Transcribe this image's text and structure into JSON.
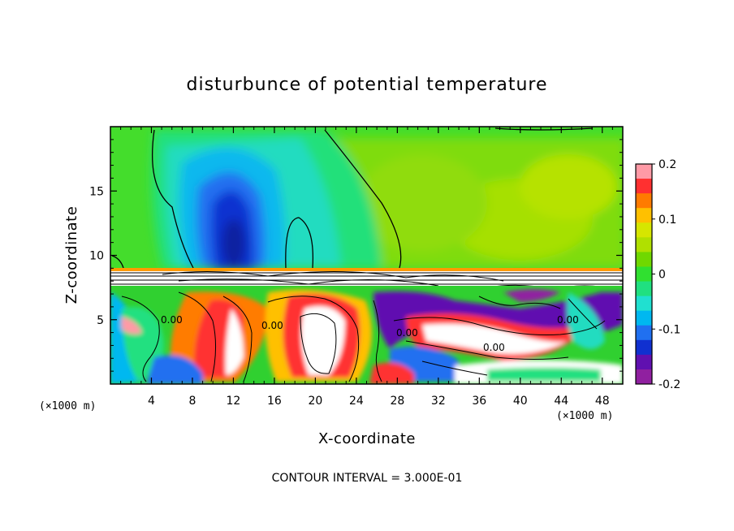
{
  "chart_data": {
    "type": "heatmap",
    "title": "disturbunce of potential temperature",
    "xlabel": "X-coordinate",
    "ylabel": "Z-coordinate",
    "x_unit_label": "(×1000 m)",
    "xlim": [
      0,
      50
    ],
    "ylim": [
      0,
      20
    ],
    "x_ticks": [
      "4",
      "8",
      "12",
      "16",
      "20",
      "24",
      "28",
      "32",
      "36",
      "40",
      "44",
      "48"
    ],
    "y_ticks": [
      "5",
      "10",
      "15"
    ],
    "colorbar": {
      "range": [
        -0.2,
        0.2
      ],
      "tick_labels": [
        "0.2",
        "0.1",
        "0",
        "-0.1",
        "-0.2"
      ],
      "colors": [
        "#ff9aa6",
        "#ff3030",
        "#ff7b00",
        "#ffc000",
        "#d6e600",
        "#b0e000",
        "#70d800",
        "#30e030",
        "#20e080",
        "#20e0d0",
        "#00b8f0",
        "#2070f0",
        "#1030d0",
        "#6010b0",
        "#9020a0"
      ]
    },
    "contour_interval_text": "CONTOUR INTERVAL = 3.000E-01",
    "contour_labels": [
      "0.00",
      "0.00",
      "0.00",
      "0.00",
      "0.00"
    ]
  }
}
